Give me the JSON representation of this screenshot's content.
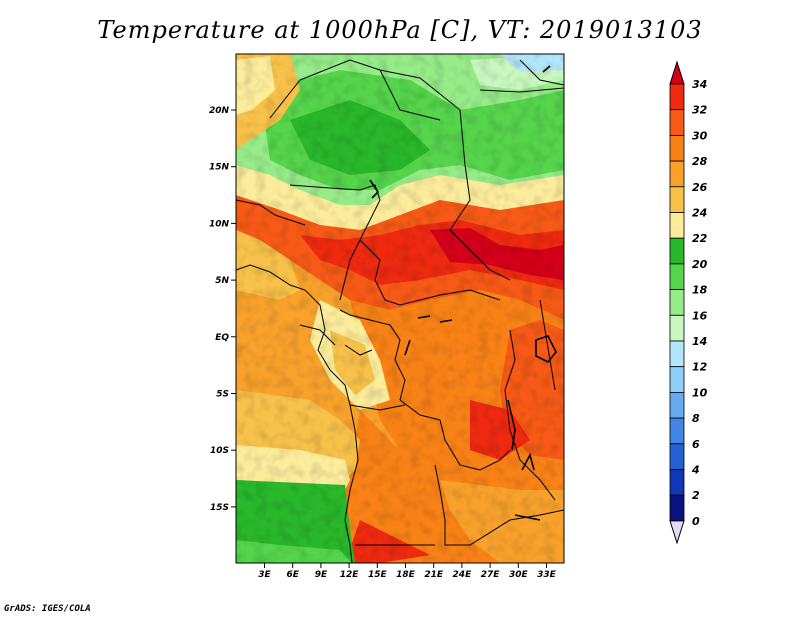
{
  "title": "Temperature at 1000hPa [C], VT: 2019013103",
  "credit": "GrADS: IGES/COLA",
  "lat_labels": [
    "20N",
    "15N",
    "10N",
    "5N",
    "EQ",
    "5S",
    "10S",
    "15S"
  ],
  "lon_labels": [
    "3E",
    "6E",
    "9E",
    "12E",
    "15E",
    "18E",
    "21E",
    "24E",
    "27E",
    "30E",
    "33E"
  ],
  "colorbar": {
    "labels": [
      "34",
      "32",
      "30",
      "28",
      "26",
      "24",
      "22",
      "20",
      "18",
      "16",
      "14",
      "12",
      "10",
      "8",
      "6",
      "4",
      "2",
      "0"
    ],
    "colors": [
      "#d4001a",
      "#ee2a10",
      "#f65a16",
      "#f98217",
      "#f8a22c",
      "#f8c24a",
      "#fcec9c",
      "#29b82b",
      "#55d44c",
      "#96ec88",
      "#c8f8c0",
      "#b2e6fa",
      "#8fcef9",
      "#66abf2",
      "#4286e5",
      "#2562d1",
      "#1138b4",
      "#0a1380",
      "#e0dcf8"
    ]
  },
  "map": {
    "x_range": [
      "0E",
      "36E"
    ],
    "y_range": [
      "19S",
      "25N"
    ],
    "field": "Temperature at 1000hPa [C]"
  }
}
